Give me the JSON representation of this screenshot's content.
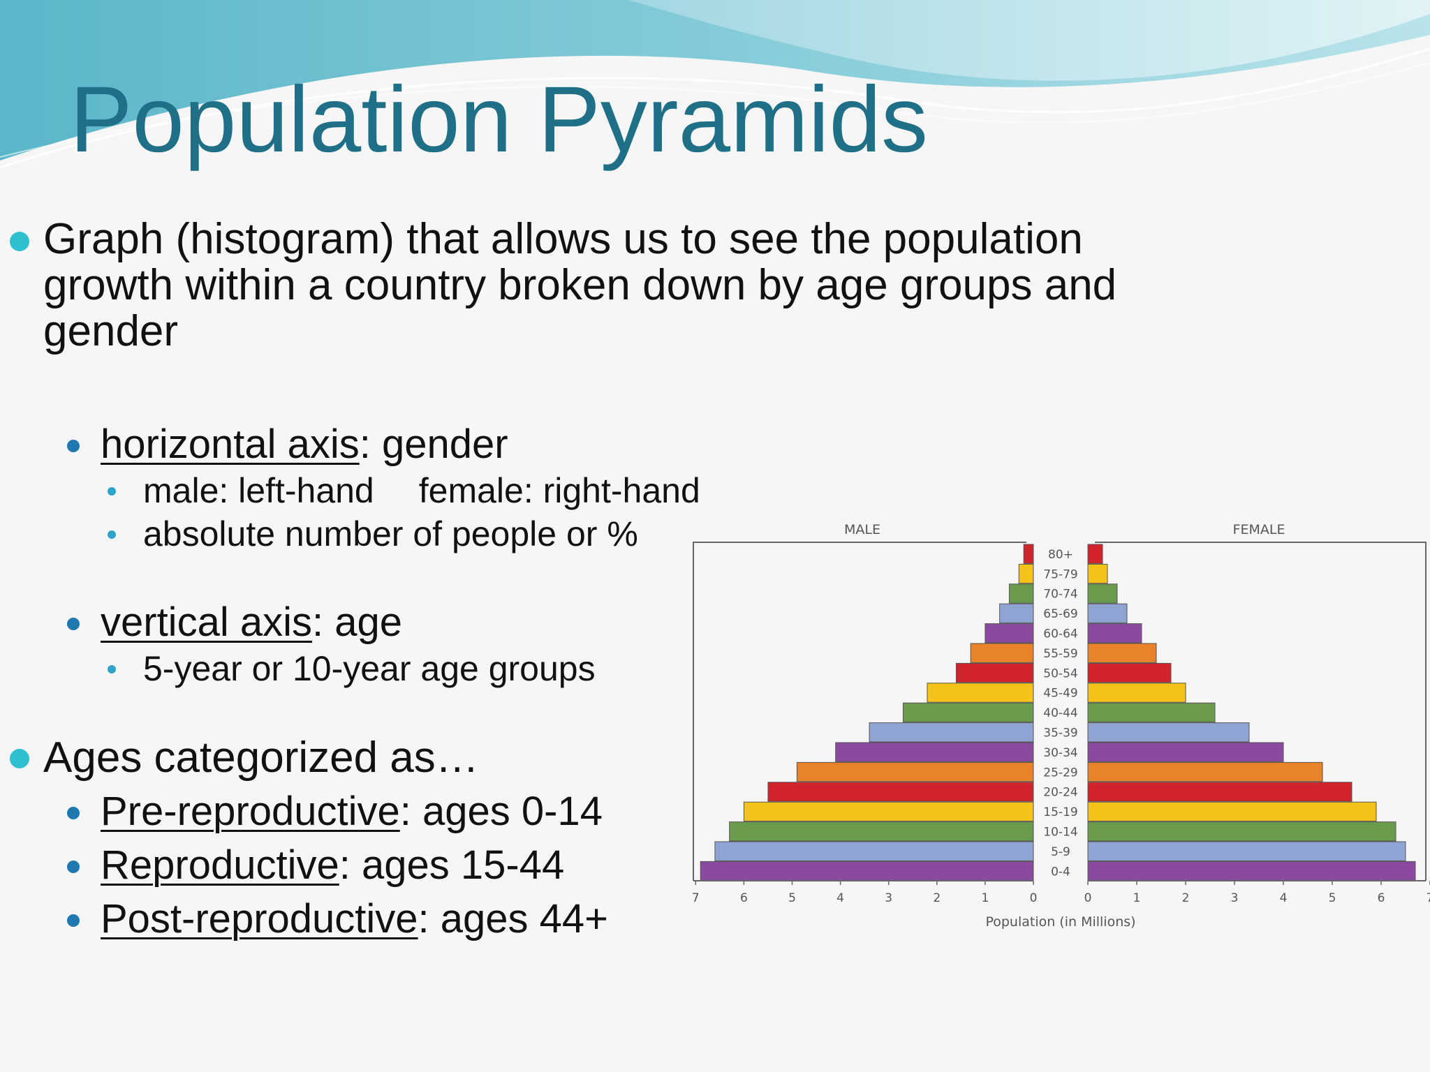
{
  "title": "Population Pyramids",
  "bullets": {
    "b1": {
      "line1": "Graph (histogram) that allows us to see the population",
      "line2": "growth within a country broken down by age groups and",
      "line3": "gender"
    },
    "horizontal": {
      "term": "horizontal axis",
      "rest": ": gender"
    },
    "male_female": {
      "male": "male: left-hand",
      "female": "female: right-hand"
    },
    "absolute": "absolute number of people or %",
    "vertical": {
      "term": "vertical axis",
      "rest": ": age"
    },
    "age_groups": "5-year or 10-year age groups",
    "categorized": "Ages categorized as…",
    "pre": {
      "term": "Pre-reproductive",
      "rest": ": ages 0-14"
    },
    "repro": {
      "term": "Reproductive",
      "rest": ": ages 15-44"
    },
    "post": {
      "term": "Post-reproductive",
      "rest": ": ages 44+"
    }
  },
  "chart_data": {
    "type": "bar",
    "orientation": "horizontal-pyramid",
    "categories": [
      "80+",
      "75-79",
      "70-74",
      "65-69",
      "60-64",
      "55-59",
      "50-54",
      "45-49",
      "40-44",
      "35-39",
      "30-34",
      "25-29",
      "20-24",
      "15-19",
      "10-14",
      "5-9",
      "0-4"
    ],
    "series": [
      {
        "name": "MALE",
        "values": [
          0.2,
          0.3,
          0.5,
          0.7,
          1.0,
          1.3,
          1.6,
          2.2,
          2.7,
          3.4,
          4.1,
          4.9,
          5.5,
          6.0,
          6.3,
          6.6,
          6.9
        ]
      },
      {
        "name": "FEMALE",
        "values": [
          0.3,
          0.4,
          0.6,
          0.8,
          1.1,
          1.4,
          1.7,
          2.0,
          2.6,
          3.3,
          4.0,
          4.8,
          5.4,
          5.9,
          6.3,
          6.5,
          6.7
        ]
      }
    ],
    "bar_colors": [
      "#d2232a",
      "#f5c21a",
      "#6a9a4c",
      "#8fa4d2",
      "#8a4a9e",
      "#e8832a",
      "#d2232a",
      "#f5c21a",
      "#6a9a4c",
      "#8fa4d2",
      "#8a4a9e",
      "#e8832a",
      "#d2232a",
      "#f5c21a",
      "#6a9a4c",
      "#8fa4d2",
      "#8a4a9e"
    ],
    "x_ticks": [
      7,
      6,
      5,
      4,
      3,
      2,
      1,
      0
    ],
    "xlim": [
      0,
      7
    ],
    "xlabel": "Population (in Millions)",
    "legend": "panel labels top",
    "grid": false
  }
}
